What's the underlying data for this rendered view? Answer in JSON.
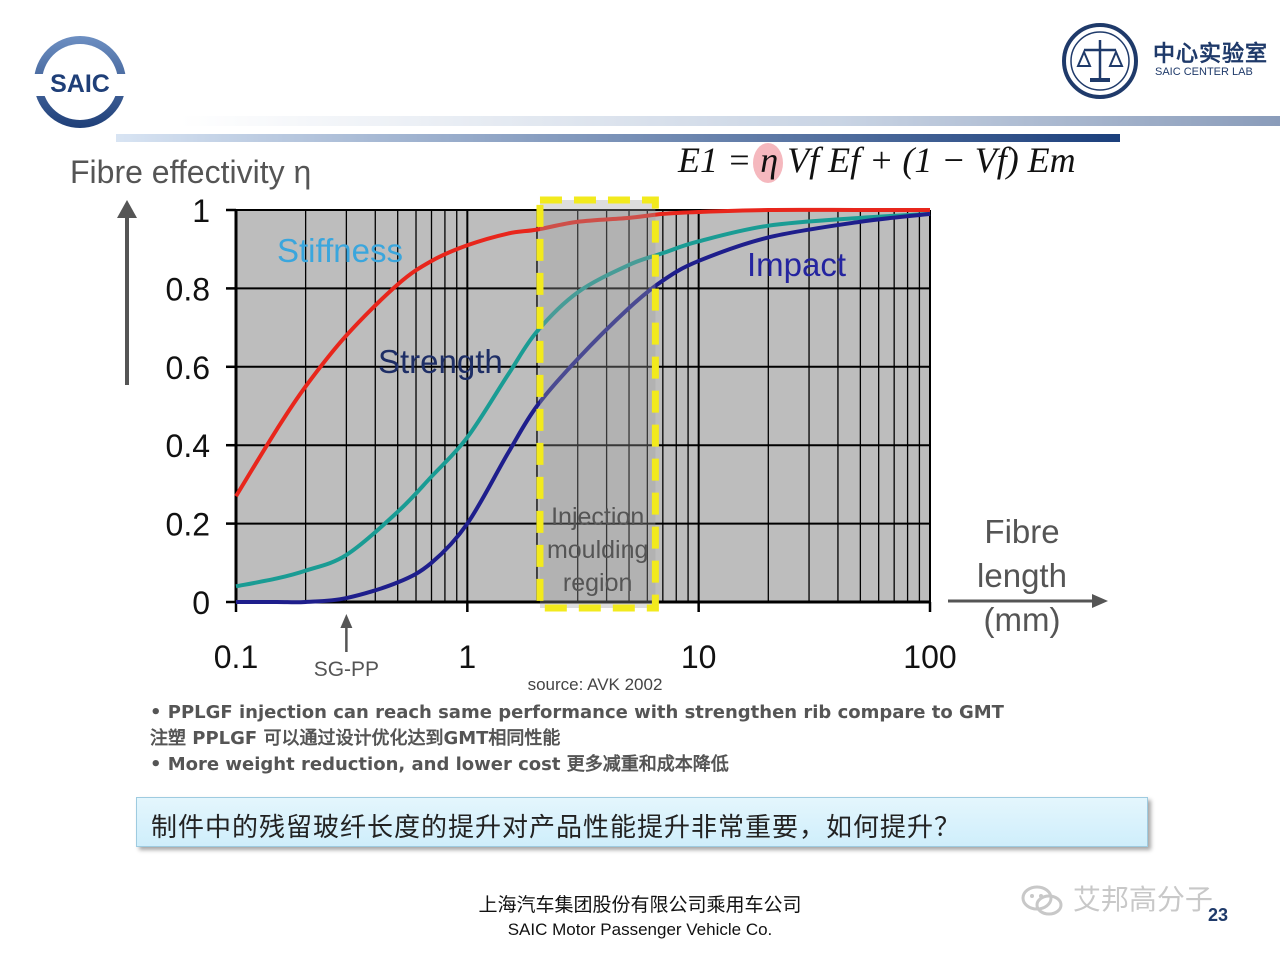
{
  "header": {
    "left_logo_text": "SAIC",
    "right_logo_cn": "中心实验室",
    "right_logo_en": "SAIC CENTER LAB"
  },
  "chart_data": {
    "type": "line",
    "title": "",
    "ylabel": "Fibre effectivity η",
    "xlabel": "Fibre length (mm)",
    "xlabel_lines": [
      "Fibre",
      "length",
      "(mm)"
    ],
    "x_scale": "log",
    "xlim": [
      0.1,
      100
    ],
    "ylim": [
      0,
      1
    ],
    "x_ticks": [
      0.1,
      1,
      10,
      100
    ],
    "x_tick_labels": [
      "0.1",
      "1",
      "10",
      "100"
    ],
    "y_ticks": [
      0,
      0.2,
      0.4,
      0.6,
      0.8,
      1
    ],
    "y_tick_labels": [
      "0",
      "0.2",
      "0.4",
      "0.6",
      "0.8",
      "1"
    ],
    "grid": true,
    "formula": "E1 = η Vf Ef + (1 − Vf) Em",
    "source": "source: AVK 2002",
    "series": [
      {
        "name": "Stiffness",
        "color": "#e8261c",
        "x": [
          0.1,
          0.15,
          0.2,
          0.3,
          0.5,
          0.7,
          1,
          1.5,
          2,
          3,
          5,
          7,
          10,
          20,
          50,
          100
        ],
        "y": [
          0.27,
          0.44,
          0.55,
          0.68,
          0.81,
          0.87,
          0.91,
          0.94,
          0.95,
          0.97,
          0.98,
          0.99,
          0.995,
          1.0,
          1.0,
          1.0
        ]
      },
      {
        "name": "Strength",
        "color": "#1a9c94",
        "x": [
          0.1,
          0.15,
          0.2,
          0.3,
          0.5,
          0.7,
          1,
          1.5,
          2,
          3,
          5,
          7,
          10,
          20,
          50,
          100
        ],
        "y": [
          0.04,
          0.06,
          0.08,
          0.12,
          0.23,
          0.32,
          0.42,
          0.58,
          0.69,
          0.79,
          0.86,
          0.89,
          0.92,
          0.96,
          0.98,
          0.99
        ]
      },
      {
        "name": "Impact",
        "color": "#1e1e8c",
        "x": [
          0.1,
          0.15,
          0.2,
          0.3,
          0.5,
          0.7,
          1,
          1.5,
          2,
          3,
          5,
          7,
          10,
          20,
          50,
          100
        ],
        "y": [
          0.0,
          0.0,
          0.0,
          0.01,
          0.05,
          0.1,
          0.2,
          0.38,
          0.5,
          0.62,
          0.75,
          0.82,
          0.87,
          0.93,
          0.97,
          0.99
        ]
      }
    ],
    "annotations": {
      "region_label_lines": [
        "Injection",
        "moulding",
        "region"
      ],
      "region_x": [
        2,
        6.5
      ],
      "region_color": "#f2ea1d",
      "marker_label": "SG-PP",
      "marker_x": 0.3
    }
  },
  "bullets": [
    "• PPLGF injection can reach same performance with strengthen rib compare to GMT",
    "注塑 PPLGF 可以通过设计优化达到GMT相同性能",
    "• More weight reduction, and lower cost 更多减重和成本降低"
  ],
  "callout": "制件中的残留玻纤长度的提升对产品性能提升非常重要，如何提升？",
  "footer": {
    "company_cn": "上海汽车集团股份有限公司乘用车公司",
    "company_en": "SAIC Motor Passenger Vehicle Co."
  },
  "watermark": "艾邦高分子",
  "page_number": "23"
}
